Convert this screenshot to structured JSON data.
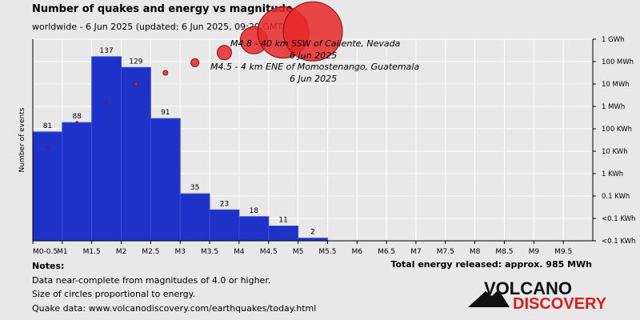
{
  "chart_data": {
    "type": "bar",
    "title": "Number of quakes and energy vs magnitude",
    "subtitle": "worldwide -  6 Jun 2025 (updated: 6 Jun 2025, 09:29 GMT)",
    "ylabel": "Number of events",
    "x_ticks": [
      "M0-0.5",
      "M1",
      "M1.5",
      "M2",
      "M2.5",
      "M3",
      "M3.5",
      "M4",
      "M4.5",
      "M5",
      "M5.5",
      "M6",
      "M6.5",
      "M7",
      "M7.5",
      "M8",
      "M8.5",
      "M9",
      "M9.5"
    ],
    "bars": [
      {
        "from": 0.0,
        "to": 0.5,
        "count": 81
      },
      {
        "from": 0.5,
        "to": 1.0,
        "count": 88
      },
      {
        "from": 1.0,
        "to": 1.5,
        "count": 137
      },
      {
        "from": 1.5,
        "to": 2.0,
        "count": 129
      },
      {
        "from": 2.0,
        "to": 2.5,
        "count": 91
      },
      {
        "from": 2.5,
        "to": 3.0,
        "count": 35
      },
      {
        "from": 3.0,
        "to": 3.5,
        "count": 23
      },
      {
        "from": 3.5,
        "to": 4.0,
        "count": 18
      },
      {
        "from": 4.0,
        "to": 4.5,
        "count": 11
      },
      {
        "from": 4.5,
        "to": 5.0,
        "count": 2
      }
    ],
    "ylim_count": [
      0,
      150
    ],
    "energy_ticks": [
      "1 GWh",
      "100 MWh",
      "10 MWh",
      "1 MWh",
      "100 KWh",
      "10 KWh",
      "1 KWh",
      "0.1 KWh",
      "<0.1 KWh",
      "<0.1 KWh"
    ],
    "energy_points": [
      {
        "mag": 0.25,
        "energy_log_kwh": 0.2,
        "size": 1
      },
      {
        "mag": 0.75,
        "energy_log_kwh": 1.3,
        "size": 1
      },
      {
        "mag": 1.25,
        "energy_log_kwh": 2.2,
        "size": 1
      },
      {
        "mag": 1.75,
        "energy_log_kwh": 3.0,
        "size": 2
      },
      {
        "mag": 2.25,
        "energy_log_kwh": 3.5,
        "size": 3
      },
      {
        "mag": 2.75,
        "energy_log_kwh": 3.95,
        "size": 5
      },
      {
        "mag": 3.25,
        "energy_log_kwh": 4.4,
        "size": 9
      },
      {
        "mag": 3.75,
        "energy_log_kwh": 4.95,
        "size": 17
      },
      {
        "mag": 4.25,
        "energy_log_kwh": 5.3,
        "size": 32
      },
      {
        "mag": 4.75,
        "energy_log_kwh": 5.35,
        "size": 37
      }
    ],
    "annotations": [
      {
        "line1": "M4.8 - 40 km SSW of Caliente, Nevada",
        "line2": "6 Jun 2025"
      },
      {
        "line1": "M4.5 - 4 km ENE of Momostenango, Guatemala",
        "line2": "6 Jun 2025"
      }
    ],
    "colors": {
      "bar": "#1f32c8",
      "bar_edge": "#3a4fd8",
      "circle": "#e8282a",
      "grid": "#ffffff",
      "plot_bg": "#e8e8e8"
    }
  },
  "notes": {
    "heading": "Notes:",
    "line1": "Data near-complete from magnitudes of 4.0 or higher.",
    "line2": "Size of circles proportional to energy.",
    "line3": "Quake data: www.volcanodiscovery.com/earthquakes/today.html"
  },
  "total_energy": "Total energy released: approx. 985 MWh",
  "logo": {
    "word1": "VOLCANO",
    "word2": "DISCOVERY"
  }
}
